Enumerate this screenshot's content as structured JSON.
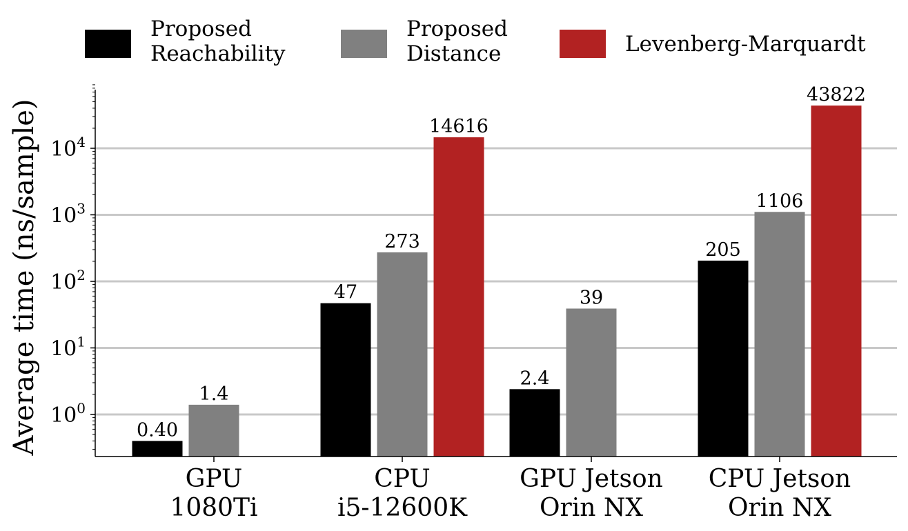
{
  "chart_data": {
    "type": "bar",
    "ylabel": "Average time (ns/sample)",
    "yscale": "log",
    "ylim": [
      0.22,
      90000
    ],
    "grid": true,
    "legend_placement": "top",
    "categories": [
      [
        "GPU",
        "1080Ti"
      ],
      [
        "CPU",
        "i5-12600K"
      ],
      [
        "GPU Jetson",
        "Orin NX"
      ],
      [
        "CPU Jetson",
        "Orin NX"
      ]
    ],
    "yticks": [
      {
        "value": 1,
        "base": "10",
        "exp": "0"
      },
      {
        "value": 10,
        "base": "10",
        "exp": "1"
      },
      {
        "value": 100,
        "base": "10",
        "exp": "2"
      },
      {
        "value": 1000,
        "base": "10",
        "exp": "3"
      },
      {
        "value": 10000,
        "base": "10",
        "exp": "4"
      }
    ],
    "series": [
      {
        "name": "Proposed Reachability",
        "legend_lines": [
          "Proposed",
          "Reachability"
        ],
        "color": "#000000",
        "values": [
          0.4,
          47,
          2.4,
          205
        ],
        "labels": [
          "0.40",
          "47",
          "2.4",
          "205"
        ]
      },
      {
        "name": "Proposed Distance",
        "legend_lines": [
          "Proposed",
          "Distance"
        ],
        "color": "#808080",
        "values": [
          1.4,
          273,
          39,
          1106
        ],
        "labels": [
          "1.4",
          "273",
          "39",
          "1106"
        ]
      },
      {
        "name": "Levenberg-Marquardt",
        "legend_lines": [
          "Levenberg-Marquardt"
        ],
        "color": "#b22222",
        "values": [
          null,
          14616,
          null,
          43822
        ],
        "labels": [
          "",
          "14616",
          "",
          "43822"
        ]
      }
    ]
  }
}
